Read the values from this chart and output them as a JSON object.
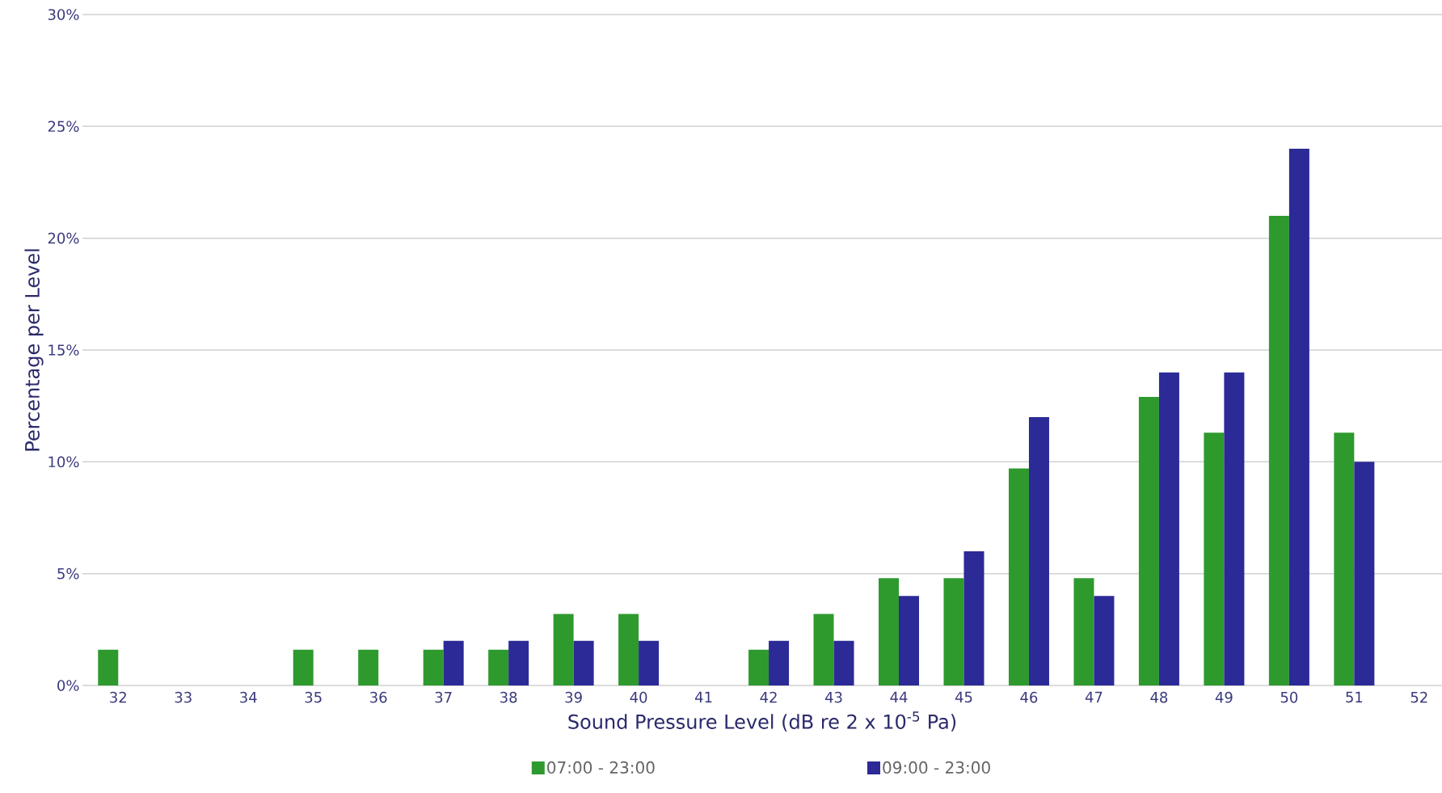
{
  "chart_data": {
    "type": "bar",
    "xlabel": "Sound Pressure Level (dB re 2 x 10$^{-5}$ Pa)",
    "ylabel": "Percentage per Level",
    "categories": [
      "32",
      "33",
      "34",
      "35",
      "36",
      "37",
      "38",
      "39",
      "40",
      "41",
      "42",
      "43",
      "44",
      "45",
      "46",
      "47",
      "48",
      "49",
      "50",
      "51",
      "52"
    ],
    "series": [
      {
        "name": "07:00 - 23:00",
        "color": "#2e9a2e",
        "values": [
          1.6,
          null,
          null,
          1.6,
          1.6,
          1.6,
          1.6,
          3.2,
          3.2,
          null,
          1.6,
          3.2,
          4.8,
          4.8,
          9.7,
          4.8,
          12.9,
          11.3,
          21.0,
          11.3,
          null
        ]
      },
      {
        "name": "09:00 - 23:00",
        "color": "#2b2a96",
        "values": [
          null,
          null,
          null,
          null,
          null,
          2,
          2,
          2,
          2,
          null,
          2,
          2,
          4,
          6,
          12,
          4,
          14,
          14,
          24,
          10,
          null
        ]
      }
    ],
    "ylim": [
      0,
      30
    ],
    "yticks": [
      {
        "value": 0,
        "label": "0%"
      },
      {
        "value": 5,
        "label": "5%"
      },
      {
        "value": 10,
        "label": "10%"
      },
      {
        "value": 15,
        "label": "15%"
      },
      {
        "value": 20,
        "label": "20%"
      },
      {
        "value": 25,
        "label": "25%"
      },
      {
        "value": 30,
        "label": "30%"
      }
    ],
    "grid": "y",
    "legend": "bottom"
  }
}
